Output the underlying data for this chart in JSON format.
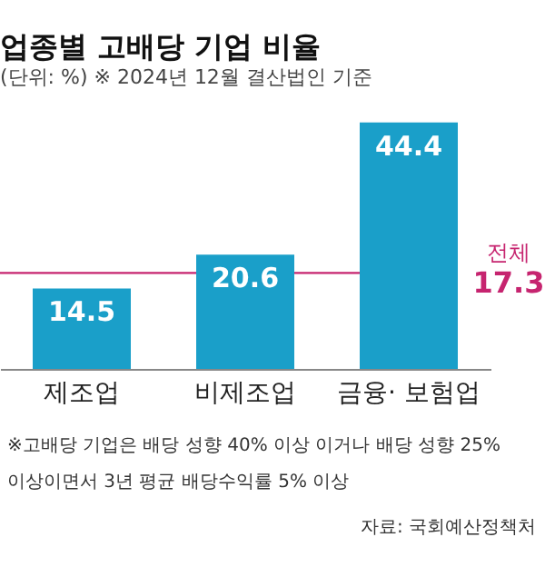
{
  "chart_data": {
    "type": "bar",
    "title": "업종별 고배당 기업 비율",
    "subtitle": "(단위: %)  ※ 2024년 12월 결산법인 기준",
    "categories": [
      "제조업",
      "비제조업",
      "금융· 보험업"
    ],
    "values": [
      14.5,
      20.6,
      44.4
    ],
    "color": "#1a9fc9",
    "data_labels": true,
    "ref_lines": [
      {
        "axis": "y",
        "value": 17.3,
        "label": "전체",
        "color": "#c6246f"
      }
    ],
    "annotations": [
      "17.3",
      "※고배당 기업은 배당 성향 40% 이상 이거나 배당 성향 25%",
      "이상이면서 3년 평균 배당수익률 5% 이상",
      "자료: 국회예산정책처"
    ]
  }
}
